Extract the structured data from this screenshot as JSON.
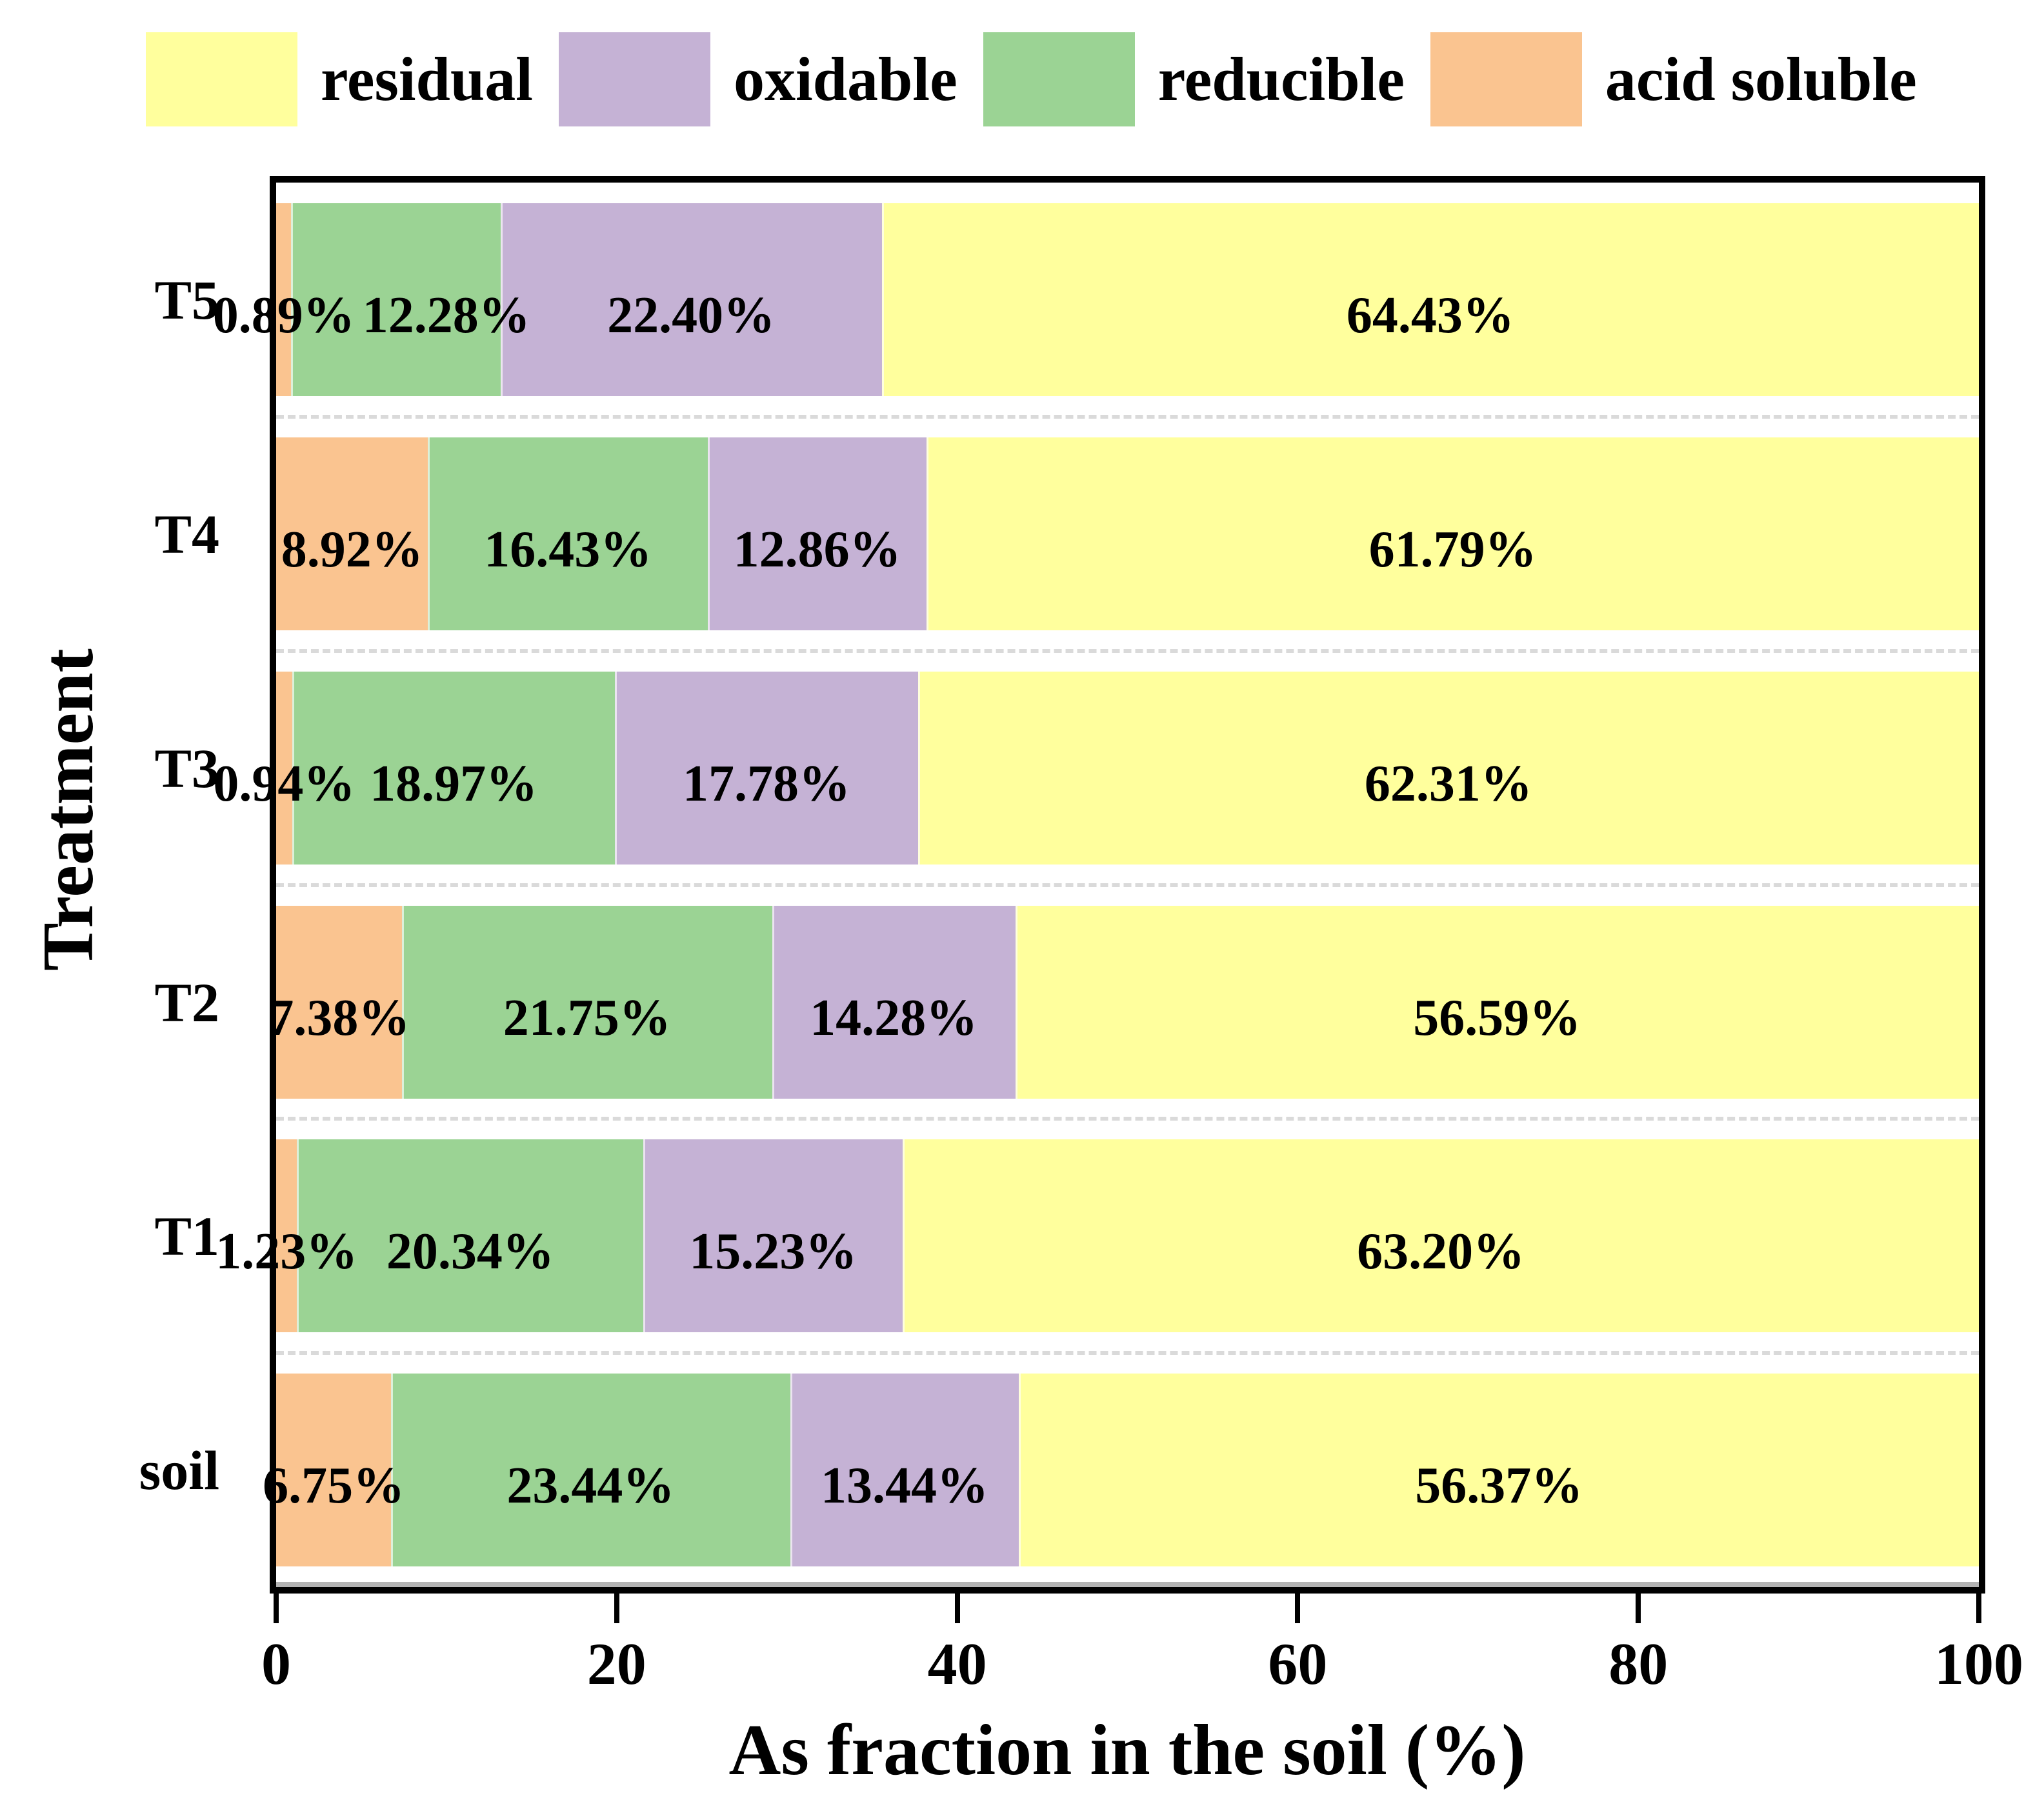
{
  "figure": {
    "xlabel": "As fraction in the soil (%)",
    "ylabel": "Treatment",
    "legend": [
      {
        "label": "residual",
        "color": "#FFFF9D"
      },
      {
        "label": "oxidable",
        "color": "#C5B2D5"
      },
      {
        "label": "reducible",
        "color": "#9BD394"
      },
      {
        "label": "acid soluble",
        "color": "#FAC490"
      }
    ],
    "colors": {
      "axis": "#000000",
      "separator": "#DADADA",
      "axis_shadow": "#B3B3B3"
    }
  },
  "chart_data": {
    "type": "bar",
    "orientation": "horizontal-stacked",
    "title": "",
    "xlabel": "As fraction in the soil (%)",
    "ylabel": "Treatment",
    "xlim": [
      0,
      100
    ],
    "xticks": [
      0,
      20,
      40,
      60,
      80,
      100
    ],
    "grid": "dashed horizontal separators between bars",
    "legend_position": "top",
    "categories_top_to_bottom": [
      "T5",
      "T4",
      "T3",
      "T2",
      "T1",
      "soil"
    ],
    "series": [
      {
        "name": "acid soluble",
        "color": "#FAC490",
        "values": [
          0.89,
          8.92,
          0.94,
          7.38,
          1.23,
          6.75
        ]
      },
      {
        "name": "reducible",
        "color": "#9BD394",
        "values": [
          12.28,
          16.43,
          18.97,
          21.75,
          20.34,
          23.44
        ]
      },
      {
        "name": "oxidable",
        "color": "#C5B2D5",
        "values": [
          22.4,
          12.86,
          17.78,
          14.28,
          15.23,
          13.44
        ]
      },
      {
        "name": "residual",
        "color": "#FFFF9D",
        "values": [
          64.43,
          61.79,
          62.31,
          56.59,
          63.2,
          56.37
        ]
      }
    ],
    "value_label_format": "0.00%"
  }
}
